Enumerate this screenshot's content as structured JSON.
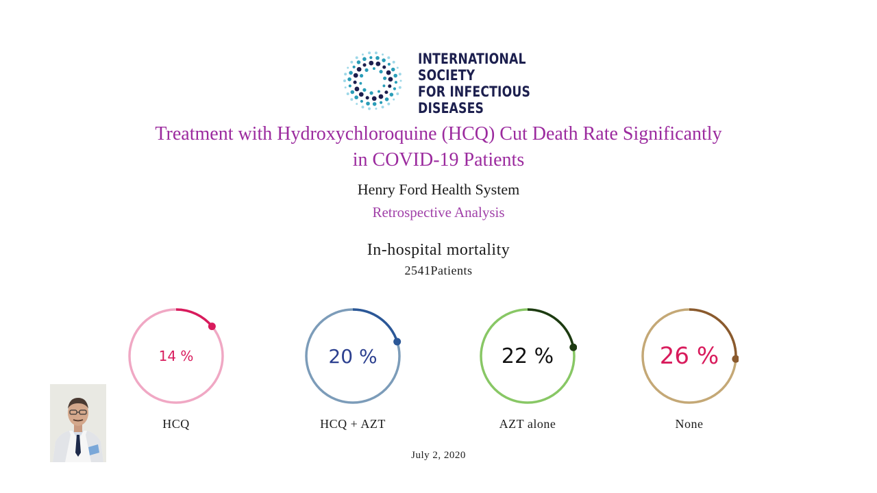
{
  "logo": {
    "lines": [
      "INTERNATIONAL",
      "SOCIETY",
      "FOR INFECTIOUS",
      "DISEASES"
    ],
    "colors": {
      "text": "#1c1f4e",
      "dot_dark": "#1c1f4e",
      "dot_teal": "#2a9db8",
      "dot_light": "#9ed8e8"
    }
  },
  "title": {
    "line1": "Treatment with Hydroxychloroquine (HCQ) Cut Death Rate Significantly",
    "line2": "in COVID-19 Patients"
  },
  "organization": "Henry Ford Health System",
  "subtitle": "Retrospective Analysis",
  "metric_title": "In-hospital mortality",
  "patients": "2541Patients",
  "date": "July 2, 2020",
  "chart_data": {
    "type": "gauge",
    "title": "In-hospital mortality",
    "subtitle": "2541Patients",
    "unit": "%",
    "categories": [
      "HCQ",
      "HCQ + AZT",
      "AZT alone",
      "None"
    ],
    "values": [
      14,
      20,
      22,
      26
    ],
    "items": [
      {
        "label": "HCQ",
        "value": 14,
        "display": "14 %",
        "track_color": "#f0a8c4",
        "arc_color": "#d81b5c",
        "text_color": "#d81b5c"
      },
      {
        "label": "HCQ + AZT",
        "value": 20,
        "display": "20 %",
        "track_color": "#7c9cb9",
        "arc_color": "#2b5797",
        "text_color": "#2b3f8f"
      },
      {
        "label": "AZT alone",
        "value": 22,
        "display": "22 %",
        "track_color": "#88c765",
        "arc_color": "#1d3a12",
        "text_color": "#111111"
      },
      {
        "label": "None",
        "value": 26,
        "display": "26 %",
        "track_color": "#c4a876",
        "arc_color": "#8a5a2e",
        "text_color": "#d81b5c"
      }
    ]
  }
}
